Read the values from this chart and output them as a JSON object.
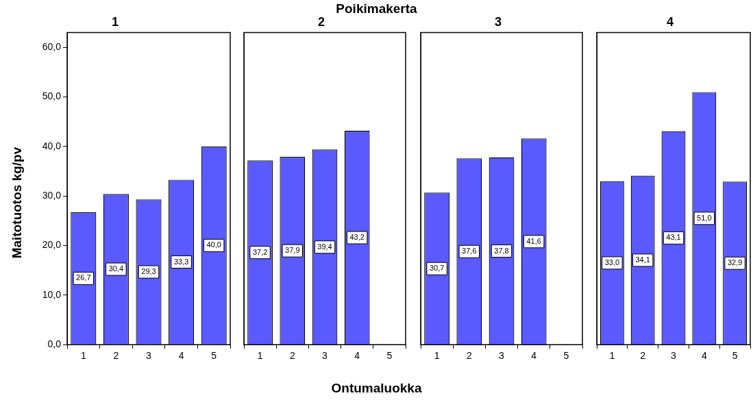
{
  "chart_data": [
    {
      "type": "bar",
      "title": "1",
      "ylabel": "Maitotuotos kg/pv",
      "categories": [
        "1",
        "2",
        "3",
        "4",
        "5"
      ],
      "values": [
        26.7,
        30.4,
        29.3,
        33.3,
        40.0
      ],
      "value_labels": [
        "26,7",
        "30,4",
        "29,3",
        "33,3",
        "40,0"
      ],
      "color": "#5a5aff",
      "ylim": [
        0,
        63
      ],
      "yticks": [
        {
          "value": 0,
          "label": "0,0"
        },
        {
          "value": 10,
          "label": "10,0"
        },
        {
          "value": 20,
          "label": "20,0"
        },
        {
          "value": 30,
          "label": "30,0"
        },
        {
          "value": 40,
          "label": "40,0"
        },
        {
          "value": 50,
          "label": "50,0"
        },
        {
          "value": 60,
          "label": "60,0"
        }
      ],
      "grid": false,
      "legend": false
    },
    {
      "type": "bar",
      "title": "2",
      "annotations": [
        "Poikimakerta"
      ],
      "xlabel": "Ontumaluokka",
      "categories": [
        "1",
        "2",
        "3",
        "4",
        "5"
      ],
      "values": [
        37.2,
        37.9,
        39.4,
        43.2,
        null
      ],
      "value_labels": [
        "37,2",
        "37,9",
        "39,4",
        "43,2",
        null
      ],
      "color": "#5a5aff",
      "ylim": [
        0,
        63
      ],
      "tick_labels": "x",
      "grid": false,
      "legend": false
    },
    {
      "type": "bar",
      "title": "3",
      "categories": [
        "1",
        "2",
        "3",
        "4",
        "5"
      ],
      "values": [
        30.7,
        37.6,
        37.8,
        41.6,
        null
      ],
      "value_labels": [
        "30,7",
        "37,6",
        "37,8",
        "41,6",
        null
      ],
      "color": "#5a5aff",
      "ylim": [
        0,
        63
      ],
      "tick_labels": "x",
      "grid": false,
      "legend": false
    },
    {
      "type": "bar",
      "title": "4",
      "categories": [
        "1",
        "2",
        "3",
        "4",
        "5"
      ],
      "values": [
        33.0,
        34.1,
        43.1,
        51.0,
        32.9
      ],
      "value_labels": [
        "33,0",
        "34,1",
        "43,1",
        "51,0",
        "32,9"
      ],
      "color": "#5a5aff",
      "ylim": [
        0,
        63
      ],
      "tick_labels": "x",
      "grid": false,
      "legend": false
    }
  ]
}
